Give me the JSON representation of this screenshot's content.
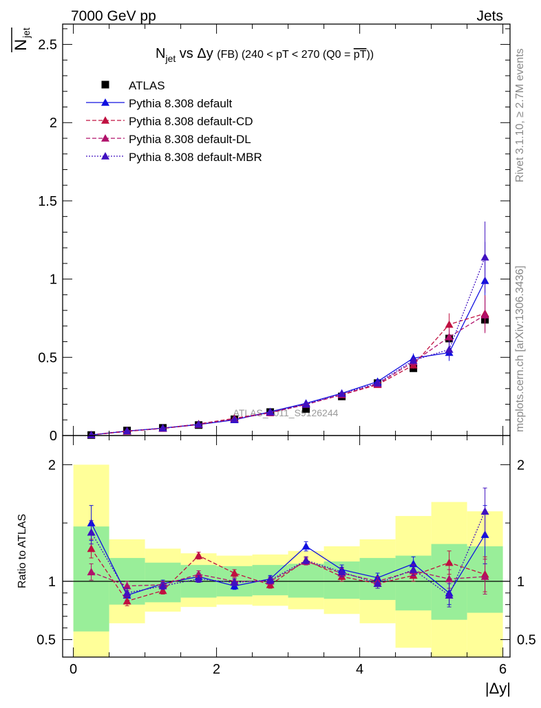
{
  "header": {
    "left": "7000 GeV pp",
    "right": "Jets"
  },
  "side_labels": {
    "rivet": "Rivet 3.1.10, ≥ 2.7M events",
    "mcplots": "mcplots.cern.ch [arXiv:1306.3436]"
  },
  "watermark": "ATLAS_2011_S9126244",
  "chart_data": {
    "type": "scatter",
    "title": {
      "text": "N",
      "sub": "jet",
      "mid": " vs Δy ",
      "small1": "(FB)",
      "rest": " (240 < pT < 270 (Q0 = ",
      "over": "pT",
      "end": "))"
    },
    "ylabel": {
      "main": "N",
      "sub": "jet"
    },
    "xlabel": "|Δy|",
    "ratio_ylabel": "Ratio to ATLAS",
    "xlim": [
      -0.15,
      6.1
    ],
    "ylim": [
      0,
      2.63
    ],
    "ratio_ylim": [
      0.35,
      2.25
    ],
    "x_ticks": [
      "0",
      "2",
      "4",
      "6"
    ],
    "y_ticks": [
      "0",
      "0.5",
      "1",
      "1.5",
      "2",
      "2.5"
    ],
    "ratio_y_ticks": [
      "0.5",
      "1",
      "2"
    ],
    "x": [
      0.25,
      0.75,
      1.25,
      1.75,
      2.25,
      2.75,
      3.25,
      3.75,
      4.25,
      4.75,
      5.25,
      5.75
    ],
    "atlas": [
      0.003,
      0.032,
      0.049,
      0.067,
      0.104,
      0.15,
      0.17,
      0.25,
      0.335,
      0.43,
      0.62,
      0.74
    ],
    "band_edges": [
      0,
      0.5,
      1,
      1.5,
      2,
      2.5,
      3,
      3.5,
      4,
      4.5,
      5,
      5.5,
      6
    ],
    "band_inner": [
      [
        0.57,
        1.47
      ],
      [
        0.8,
        1.2
      ],
      [
        0.82,
        1.16
      ],
      [
        0.86,
        1.14
      ],
      [
        0.87,
        1.13
      ],
      [
        0.88,
        1.14
      ],
      [
        0.86,
        1.15
      ],
      [
        0.85,
        1.17
      ],
      [
        0.84,
        1.2
      ],
      [
        0.75,
        1.22
      ],
      [
        0.67,
        1.32
      ],
      [
        0.73,
        1.3
      ]
    ],
    "band_outer": [
      [
        0.3,
        2.0
      ],
      [
        0.64,
        1.36
      ],
      [
        0.74,
        1.28
      ],
      [
        0.78,
        1.24
      ],
      [
        0.8,
        1.22
      ],
      [
        0.79,
        1.23
      ],
      [
        0.76,
        1.26
      ],
      [
        0.72,
        1.3
      ],
      [
        0.64,
        1.36
      ],
      [
        0.43,
        1.56
      ],
      [
        0.3,
        1.68
      ],
      [
        0.3,
        1.6
      ]
    ],
    "series": [
      {
        "name": "ATLAS",
        "color": "#000000",
        "values": [
          0.003,
          0.032,
          0.049,
          0.067,
          0.104,
          0.15,
          0.17,
          0.25,
          0.335,
          0.43,
          0.62,
          0.74
        ],
        "ratio": [
          1,
          1,
          1,
          1,
          1,
          1,
          1,
          1,
          1,
          1,
          1,
          1
        ],
        "ratio_err": [
          0,
          0,
          0,
          0,
          0,
          0,
          0,
          0,
          0,
          0,
          0,
          0
        ],
        "style": "none",
        "marker": "square"
      },
      {
        "name": "Pythia 8.308 default",
        "color": "#1010e0",
        "values": [
          0.004,
          0.028,
          0.048,
          0.07,
          0.1,
          0.152,
          0.206,
          0.27,
          0.345,
          0.495,
          0.53,
          0.99
        ],
        "ratio": [
          1.5,
          0.88,
          0.98,
          1.04,
          0.96,
          1.02,
          1.3,
          1.1,
          1.03,
          1.15,
          0.9,
          1.4
        ],
        "ratio_err": [
          0.15,
          0.04,
          0.03,
          0.03,
          0.03,
          0.03,
          0.04,
          0.04,
          0.04,
          0.06,
          0.1,
          0.25
        ],
        "style": "solid",
        "marker": "triangle"
      },
      {
        "name": "Pythia 8.308 default-CD",
        "color": "#c01040",
        "values": [
          0.004,
          0.026,
          0.046,
          0.074,
          0.11,
          0.148,
          0.2,
          0.26,
          0.325,
          0.45,
          0.71,
          0.78
        ],
        "ratio": [
          1.28,
          0.83,
          0.92,
          1.22,
          1.07,
          0.97,
          1.18,
          1.04,
          0.98,
          1.05,
          1.16,
          1.06
        ],
        "ratio_err": [
          0.08,
          0.04,
          0.03,
          0.03,
          0.03,
          0.03,
          0.03,
          0.04,
          0.04,
          0.05,
          0.1,
          0.15
        ],
        "style": "dashed",
        "marker": "triangle"
      },
      {
        "name": "Pythia 8.308 default-DL",
        "color": "#b0106a",
        "values": [
          0.004,
          0.03,
          0.045,
          0.07,
          0.105,
          0.145,
          0.198,
          0.262,
          0.33,
          0.47,
          0.63,
          0.77
        ],
        "ratio": [
          1.08,
          0.96,
          0.97,
          1.06,
          1.0,
          1.0,
          1.17,
          1.07,
          1.0,
          1.09,
          1.02,
          1.04
        ],
        "ratio_err": [
          0.07,
          0.04,
          0.03,
          0.03,
          0.03,
          0.03,
          0.03,
          0.04,
          0.04,
          0.05,
          0.08,
          0.15
        ],
        "style": "dashed",
        "marker": "triangle"
      },
      {
        "name": "Pythia 8.308 default-MBR",
        "color": "#4010c0",
        "values": [
          0.004,
          0.029,
          0.047,
          0.072,
          0.103,
          0.15,
          0.2,
          0.268,
          0.335,
          0.48,
          0.55,
          1.14
        ],
        "ratio": [
          1.42,
          0.9,
          0.96,
          1.02,
          0.99,
          1.01,
          1.18,
          1.08,
          0.98,
          1.1,
          0.88,
          1.6
        ],
        "ratio_err": [
          0.1,
          0.04,
          0.03,
          0.03,
          0.03,
          0.03,
          0.03,
          0.04,
          0.04,
          0.05,
          0.1,
          0.2
        ],
        "style": "dotted",
        "marker": "triangle"
      }
    ],
    "legend": [
      "ATLAS",
      "Pythia 8.308 default",
      "Pythia 8.308 default-CD",
      "Pythia 8.308 default-DL",
      "Pythia 8.308 default-MBR"
    ],
    "legend_position": "top-left",
    "grid": false
  }
}
